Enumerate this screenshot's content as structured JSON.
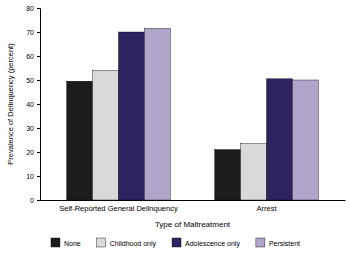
{
  "chart_data": {
    "type": "bar",
    "x_label": "Type of Maltreatment",
    "y_label": "Prevalence of Delinquency (percent)",
    "categories": [
      "Self-Reported General Delinquency",
      "Arrest"
    ],
    "series": [
      {
        "name": "None",
        "color": "#1c1c1c",
        "values": [
          49.5,
          21
        ]
      },
      {
        "name": "Childhood only",
        "color": "#d9d9d9",
        "values": [
          54,
          23.5
        ]
      },
      {
        "name": "Adolescence only",
        "color": "#2f2260",
        "values": [
          70,
          50.5
        ]
      },
      {
        "name": "Persistent",
        "color": "#b1a5cc",
        "values": [
          71.5,
          50
        ]
      }
    ],
    "ylim": [
      0,
      80
    ],
    "yticks": [
      0,
      10,
      20,
      30,
      40,
      50,
      60,
      70,
      80
    ],
    "grid": false,
    "legend": "bottom"
  }
}
